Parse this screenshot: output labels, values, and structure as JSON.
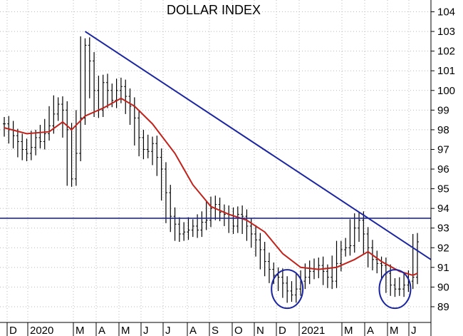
{
  "chart_data": {
    "type": "bar",
    "subtype": "ohlc-price-chart",
    "title": "DOLLAR INDEX",
    "ylim": [
      88.2,
      104.6
    ],
    "y_ticks": [
      104,
      103,
      102,
      101,
      100,
      99,
      98,
      97,
      96,
      95,
      94,
      93,
      92,
      91,
      90,
      89
    ],
    "y_tick_labels": [
      "104",
      "103",
      "102",
      "101",
      "100",
      "99",
      "98",
      "97",
      "96",
      "95",
      "94",
      "93",
      "92",
      "91",
      "90",
      "89"
    ],
    "x_month_labels": [
      "D",
      "2020",
      "M",
      "A",
      "M",
      "J",
      "J",
      "A",
      "S",
      "O",
      "N",
      "D",
      "2021",
      "M",
      "A",
      "M",
      "J"
    ],
    "grid": true,
    "colors": {
      "price": "#000000",
      "moving_average": "#c0231c",
      "trendline": "#1c26a0",
      "support": "#1c26a0",
      "circles": "#1c26a0",
      "grid": "#b9b9b9"
    },
    "series": [
      {
        "kind": "price",
        "points": [
          [
            0,
            98.3
          ],
          [
            1,
            98.0
          ],
          [
            2,
            97.7
          ],
          [
            3,
            97.4
          ],
          [
            4,
            97.0
          ],
          [
            5,
            96.8
          ],
          [
            6,
            97.1
          ],
          [
            7,
            97.6
          ],
          [
            8,
            97.4
          ],
          [
            9,
            97.8
          ],
          [
            10,
            98.2
          ],
          [
            11,
            98.8
          ],
          [
            12,
            99.3
          ],
          [
            13,
            99.0
          ],
          [
            14,
            98.0
          ],
          [
            15,
            95.5
          ],
          [
            16,
            96.8
          ],
          [
            17,
            98.6
          ],
          [
            18,
            102.3
          ],
          [
            19,
            101.5
          ],
          [
            20,
            100.0
          ],
          [
            21,
            99.0
          ],
          [
            22,
            100.4
          ],
          [
            23,
            100.0
          ],
          [
            24,
            99.5
          ],
          [
            25,
            100.0
          ],
          [
            26,
            100.2
          ],
          [
            27,
            99.7
          ],
          [
            28,
            99.2
          ],
          [
            29,
            98.6
          ],
          [
            30,
            97.6
          ],
          [
            31,
            97.0
          ],
          [
            32,
            96.9
          ],
          [
            33,
            97.3
          ],
          [
            34,
            96.6
          ],
          [
            35,
            96.0
          ],
          [
            36,
            94.8
          ],
          [
            37,
            93.6
          ],
          [
            38,
            93.2
          ],
          [
            39,
            92.7
          ],
          [
            40,
            92.8
          ],
          [
            41,
            92.9
          ],
          [
            42,
            93.1
          ],
          [
            43,
            92.9
          ],
          [
            44,
            93.3
          ],
          [
            45,
            93.4
          ],
          [
            46,
            94.0
          ],
          [
            47,
            94.2
          ],
          [
            48,
            93.8
          ],
          [
            49,
            93.7
          ],
          [
            50,
            93.5
          ],
          [
            51,
            93.1
          ],
          [
            52,
            93.7
          ],
          [
            53,
            93.6
          ],
          [
            54,
            93.1
          ],
          [
            55,
            92.7
          ],
          [
            56,
            92.4
          ],
          [
            57,
            91.9
          ],
          [
            58,
            91.3
          ],
          [
            59,
            90.9
          ],
          [
            60,
            90.6
          ],
          [
            61,
            90.5
          ],
          [
            62,
            90.2
          ],
          [
            63,
            89.8
          ],
          [
            64,
            89.6
          ],
          [
            65,
            89.9
          ],
          [
            66,
            90.3
          ],
          [
            67,
            90.5
          ],
          [
            68,
            90.8
          ],
          [
            69,
            90.9
          ],
          [
            70,
            91.1
          ],
          [
            71,
            90.8
          ],
          [
            72,
            90.5
          ],
          [
            73,
            90.3
          ],
          [
            74,
            91.2
          ],
          [
            75,
            91.9
          ],
          [
            76,
            92.0
          ],
          [
            77,
            92.1
          ],
          [
            78,
            93.0
          ],
          [
            79,
            93.4
          ],
          [
            80,
            92.7
          ],
          [
            81,
            92.0
          ],
          [
            82,
            91.4
          ],
          [
            83,
            91.2
          ],
          [
            84,
            91.1
          ],
          [
            85,
            90.7
          ],
          [
            86,
            90.1
          ],
          [
            87,
            89.9
          ],
          [
            88,
            89.9
          ],
          [
            89,
            90.1
          ],
          [
            90,
            90.3
          ],
          [
            91,
            90.5
          ],
          [
            92,
            92.3
          ]
        ]
      },
      {
        "kind": "moving_average",
        "points": [
          [
            0,
            98.1
          ],
          [
            5,
            97.8
          ],
          [
            10,
            97.9
          ],
          [
            13,
            98.4
          ],
          [
            15,
            98.0
          ],
          [
            18,
            98.7
          ],
          [
            22,
            99.1
          ],
          [
            26,
            99.6
          ],
          [
            29,
            99.2
          ],
          [
            33,
            98.3
          ],
          [
            38,
            96.8
          ],
          [
            42,
            95.2
          ],
          [
            46,
            94.1
          ],
          [
            50,
            93.7
          ],
          [
            54,
            93.4
          ],
          [
            58,
            92.8
          ],
          [
            62,
            91.7
          ],
          [
            66,
            91.0
          ],
          [
            70,
            90.9
          ],
          [
            74,
            91.0
          ],
          [
            78,
            91.4
          ],
          [
            81,
            91.8
          ],
          [
            84,
            91.3
          ],
          [
            88,
            90.8
          ],
          [
            91,
            90.6
          ],
          [
            92,
            90.7
          ]
        ]
      },
      {
        "kind": "trendline",
        "points": [
          [
            18,
            103.0
          ],
          [
            95,
            91.4
          ]
        ]
      },
      {
        "kind": "support",
        "points": [
          [
            -1,
            93.5
          ],
          [
            95,
            93.5
          ]
        ]
      }
    ],
    "annotations": [
      {
        "type": "circle",
        "x": 63,
        "y": 89.9
      },
      {
        "type": "circle",
        "x": 87,
        "y": 89.9
      }
    ]
  }
}
